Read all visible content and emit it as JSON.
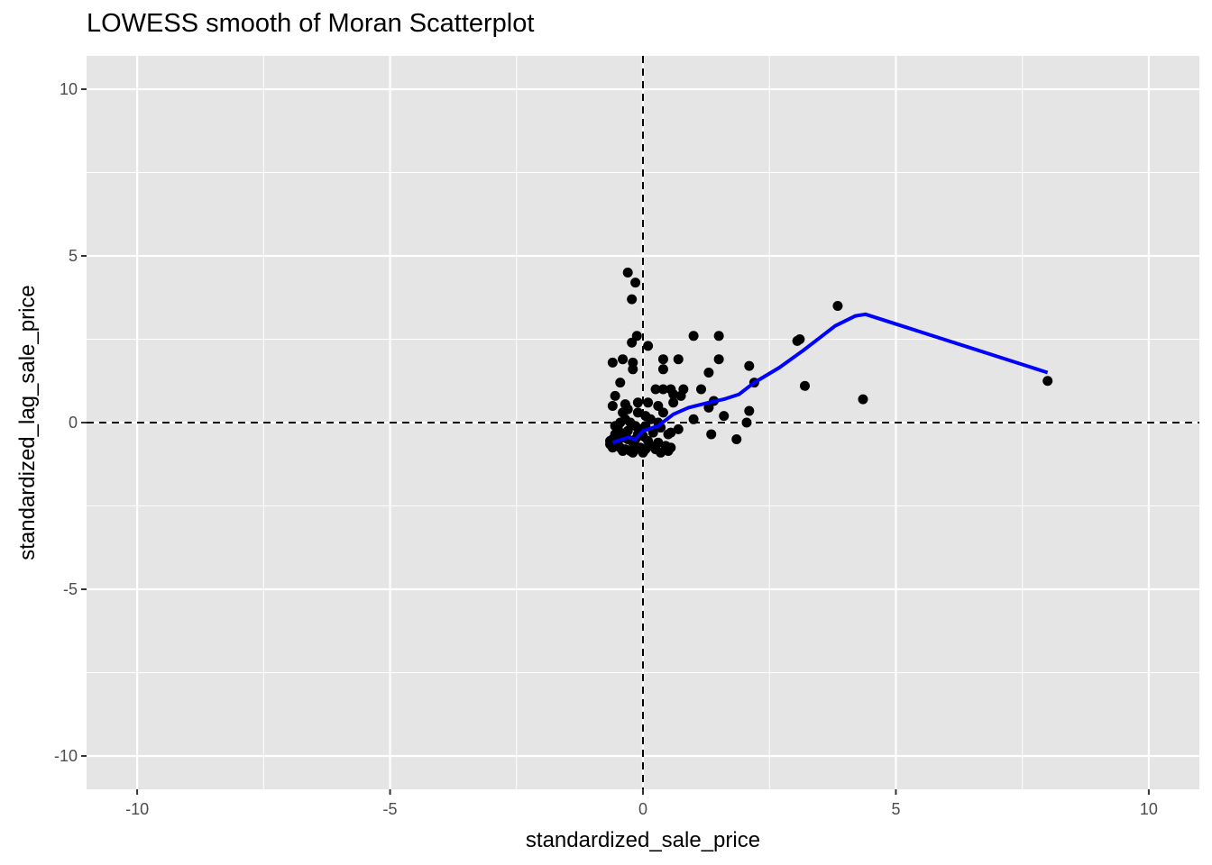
{
  "chart_data": {
    "type": "scatter",
    "title": "LOWESS smooth of Moran Scatterplot",
    "xlabel": "standardized_sale_price",
    "ylabel": "standardized_lag_sale_price",
    "xlim": [
      -11,
      11
    ],
    "ylim": [
      -11,
      11
    ],
    "x_ticks": [
      -10,
      -5,
      0,
      5,
      10
    ],
    "y_ticks": [
      -10,
      -5,
      0,
      5,
      10
    ],
    "x_tick_labels": [
      "-10",
      "-5",
      "0",
      "5",
      "10"
    ],
    "y_tick_labels": [
      "-10",
      "-5",
      "0",
      "5",
      "10"
    ],
    "grid": true,
    "reference_lines": {
      "x": 0,
      "y": 0,
      "style": "dashed"
    },
    "colors": {
      "panel": "#e5e5e5",
      "grid": "#ffffff",
      "points": "#000000",
      "smooth": "#0000ff"
    },
    "points": [
      {
        "x": -0.3,
        "y": 4.5
      },
      {
        "x": -0.15,
        "y": 4.2
      },
      {
        "x": -0.22,
        "y": 3.7
      },
      {
        "x": -0.12,
        "y": 2.6
      },
      {
        "x": -0.22,
        "y": 2.4
      },
      {
        "x": 0.1,
        "y": 2.3
      },
      {
        "x": -0.4,
        "y": 1.9
      },
      {
        "x": -0.2,
        "y": 1.8
      },
      {
        "x": -0.6,
        "y": 1.8
      },
      {
        "x": -0.2,
        "y": 1.6
      },
      {
        "x": -0.45,
        "y": 1.2
      },
      {
        "x": 0.4,
        "y": 1.9
      },
      {
        "x": 0.4,
        "y": 1.6
      },
      {
        "x": 0.7,
        "y": 1.9
      },
      {
        "x": 1.0,
        "y": 2.6
      },
      {
        "x": 1.5,
        "y": 2.6
      },
      {
        "x": 1.5,
        "y": 1.9
      },
      {
        "x": 2.1,
        "y": 1.7
      },
      {
        "x": 1.3,
        "y": 1.5
      },
      {
        "x": 2.2,
        "y": 1.2
      },
      {
        "x": 3.1,
        "y": 2.5
      },
      {
        "x": 3.05,
        "y": 2.45
      },
      {
        "x": 3.85,
        "y": 3.5
      },
      {
        "x": 3.2,
        "y": 1.1
      },
      {
        "x": 4.35,
        "y": 0.7
      },
      {
        "x": 8.0,
        "y": 1.25
      },
      {
        "x": 0.25,
        "y": 1.0
      },
      {
        "x": 0.4,
        "y": 1.0
      },
      {
        "x": 0.55,
        "y": 1.0
      },
      {
        "x": 0.8,
        "y": 1.0
      },
      {
        "x": 1.15,
        "y": 1.0
      },
      {
        "x": 0.6,
        "y": 0.85
      },
      {
        "x": 0.75,
        "y": 0.8
      },
      {
        "x": 1.4,
        "y": 0.65
      },
      {
        "x": 1.3,
        "y": 0.45
      },
      {
        "x": 2.1,
        "y": 0.35
      },
      {
        "x": 1.0,
        "y": 0.1
      },
      {
        "x": 1.6,
        "y": 0.2
      },
      {
        "x": 2.05,
        "y": 0.0
      },
      {
        "x": 1.35,
        "y": -0.35
      },
      {
        "x": 1.85,
        "y": -0.5
      },
      {
        "x": 0.7,
        "y": -0.2
      },
      {
        "x": 0.55,
        "y": -0.3
      },
      {
        "x": 0.3,
        "y": 0.5
      },
      {
        "x": 0.1,
        "y": 0.6
      },
      {
        "x": -0.1,
        "y": 0.6
      },
      {
        "x": -0.35,
        "y": 0.55
      },
      {
        "x": -0.55,
        "y": 0.8
      },
      {
        "x": -0.6,
        "y": 0.5
      },
      {
        "x": -0.4,
        "y": 0.3
      },
      {
        "x": -0.3,
        "y": 0.4
      },
      {
        "x": -0.1,
        "y": 0.3
      },
      {
        "x": 0.05,
        "y": 0.2
      },
      {
        "x": 0.15,
        "y": 0.1
      },
      {
        "x": 0.3,
        "y": 0.0
      },
      {
        "x": 0.35,
        "y": -0.15
      },
      {
        "x": 0.5,
        "y": -0.35
      },
      {
        "x": 0.45,
        "y": -0.7
      },
      {
        "x": 0.5,
        "y": -0.85
      },
      {
        "x": 0.25,
        "y": -0.8
      },
      {
        "x": 0.3,
        "y": -0.6
      },
      {
        "x": 0.1,
        "y": -0.55
      },
      {
        "x": 0.0,
        "y": -0.4
      },
      {
        "x": -0.05,
        "y": -0.2
      },
      {
        "x": -0.15,
        "y": -0.1
      },
      {
        "x": -0.25,
        "y": 0.0
      },
      {
        "x": -0.35,
        "y": 0.1
      },
      {
        "x": -0.45,
        "y": 0.0
      },
      {
        "x": -0.5,
        "y": -0.15
      },
      {
        "x": -0.55,
        "y": -0.35
      },
      {
        "x": -0.6,
        "y": -0.5
      },
      {
        "x": -0.65,
        "y": -0.65
      },
      {
        "x": -0.55,
        "y": -0.7
      },
      {
        "x": -0.45,
        "y": -0.75
      },
      {
        "x": -0.35,
        "y": -0.8
      },
      {
        "x": -0.25,
        "y": -0.85
      },
      {
        "x": -0.15,
        "y": -0.8
      },
      {
        "x": -0.05,
        "y": -0.75
      },
      {
        "x": 0.05,
        "y": -0.8
      },
      {
        "x": 0.15,
        "y": -0.7
      },
      {
        "x": -0.2,
        "y": -0.6
      },
      {
        "x": -0.3,
        "y": -0.5
      },
      {
        "x": -0.4,
        "y": -0.45
      },
      {
        "x": -0.1,
        "y": -0.35
      },
      {
        "x": 0.2,
        "y": -0.3
      },
      {
        "x": -0.5,
        "y": -0.6
      },
      {
        "x": -0.6,
        "y": -0.75
      },
      {
        "x": -0.65,
        "y": -0.55
      },
      {
        "x": -0.4,
        "y": -0.85
      },
      {
        "x": -0.2,
        "y": -0.9
      },
      {
        "x": 0.0,
        "y": -0.9
      },
      {
        "x": 0.35,
        "y": -0.9
      },
      {
        "x": 0.55,
        "y": -0.75
      },
      {
        "x": -0.15,
        "y": -0.5
      },
      {
        "x": 0.05,
        "y": -0.1
      },
      {
        "x": -0.3,
        "y": -0.25
      },
      {
        "x": -0.45,
        "y": -0.3
      },
      {
        "x": -0.55,
        "y": -0.1
      },
      {
        "x": 0.4,
        "y": 0.3
      },
      {
        "x": 0.6,
        "y": 0.6
      }
    ],
    "smooth": {
      "name": "",
      "x": [
        -0.6,
        -0.3,
        -0.15,
        0.0,
        0.3,
        0.6,
        0.9,
        1.3,
        1.6,
        1.9,
        2.2,
        2.7,
        3.2,
        3.8,
        4.2,
        4.4,
        8.0
      ],
      "y": [
        -0.6,
        -0.45,
        -0.5,
        -0.25,
        -0.1,
        0.25,
        0.45,
        0.6,
        0.7,
        0.85,
        1.2,
        1.65,
        2.2,
        2.9,
        3.2,
        3.25,
        1.5
      ]
    }
  }
}
